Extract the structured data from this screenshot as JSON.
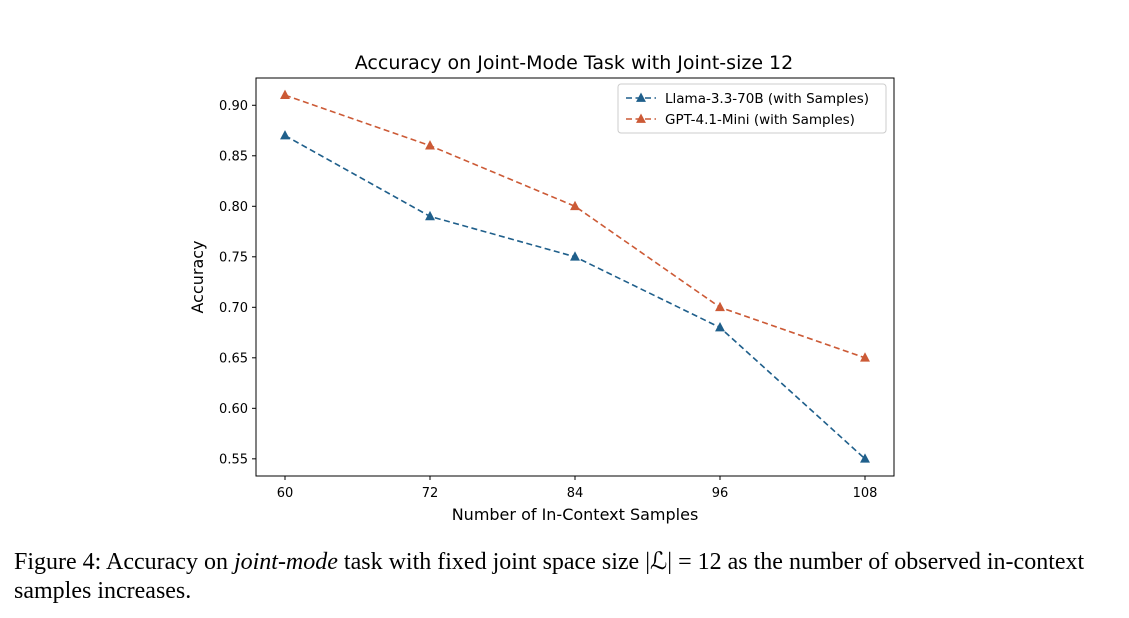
{
  "chart_data": {
    "type": "line",
    "title": "Accuracy on Joint-Mode Task with Joint-size 12",
    "xlabel": "Number of In-Context Samples",
    "ylabel": "Accuracy",
    "x": [
      60,
      72,
      84,
      96,
      108
    ],
    "x_ticks": [
      "60",
      "72",
      "84",
      "96",
      "108"
    ],
    "xlim": [
      57.6,
      110.4
    ],
    "ylim": [
      0.533,
      0.927
    ],
    "y_ticks": [
      "0.55",
      "0.60",
      "0.65",
      "0.70",
      "0.75",
      "0.80",
      "0.85",
      "0.90"
    ],
    "grid": false,
    "legend_position": "top-right",
    "series": [
      {
        "name": "Llama-3.3-70B (with Samples)",
        "values": [
          0.87,
          0.79,
          0.75,
          0.68,
          0.55
        ],
        "color": "#1f5f8b",
        "style": "dashed",
        "marker": "triangle"
      },
      {
        "name": "GPT-4.1-Mini (with Samples)",
        "values": [
          0.91,
          0.86,
          0.8,
          0.7,
          0.65
        ],
        "color": "#cc5a36",
        "style": "dashed",
        "marker": "triangle"
      }
    ]
  },
  "caption": {
    "prefix": "Figure 4: Accuracy on ",
    "emph": "joint-mode",
    "middle": " task with fixed joint space size ",
    "math": "|ℒ| = 12",
    "suffix": " as the number of observed in-context samples increases."
  }
}
